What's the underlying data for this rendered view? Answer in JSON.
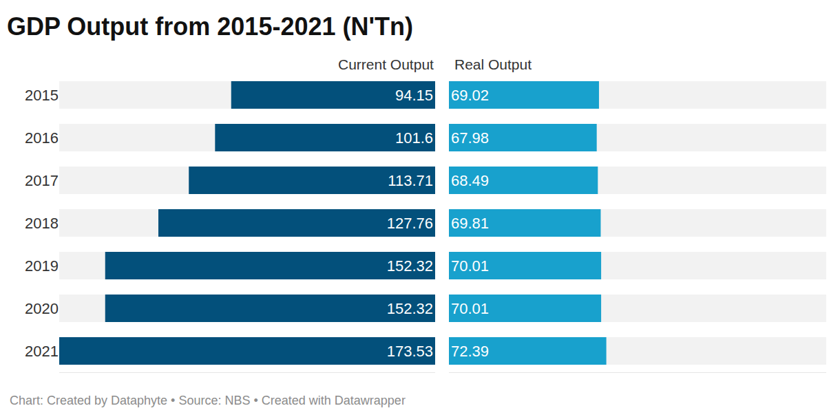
{
  "chart_data": {
    "type": "bar",
    "title": "GDP Output from 2015-2021 (N'Tn)",
    "orientation": "horizontal",
    "categories": [
      "2015",
      "2016",
      "2017",
      "2018",
      "2019",
      "2020",
      "2021"
    ],
    "series": [
      {
        "name": "Current Output",
        "color": "#03507b",
        "values": [
          94.15,
          101.6,
          113.71,
          127.76,
          152.32,
          152.32,
          173.53
        ]
      },
      {
        "name": "Real Output",
        "color": "#18a1cd",
        "values": [
          69.02,
          67.98,
          68.49,
          69.81,
          70.01,
          70.01,
          72.39
        ]
      }
    ],
    "xlim": [
      0,
      173.53
    ],
    "data_labels": true,
    "tick_labels": "y",
    "grid": false,
    "annotations": [
      "Chart: Created by Dataphyte • Source: NBS • Created with Datawrapper"
    ]
  }
}
